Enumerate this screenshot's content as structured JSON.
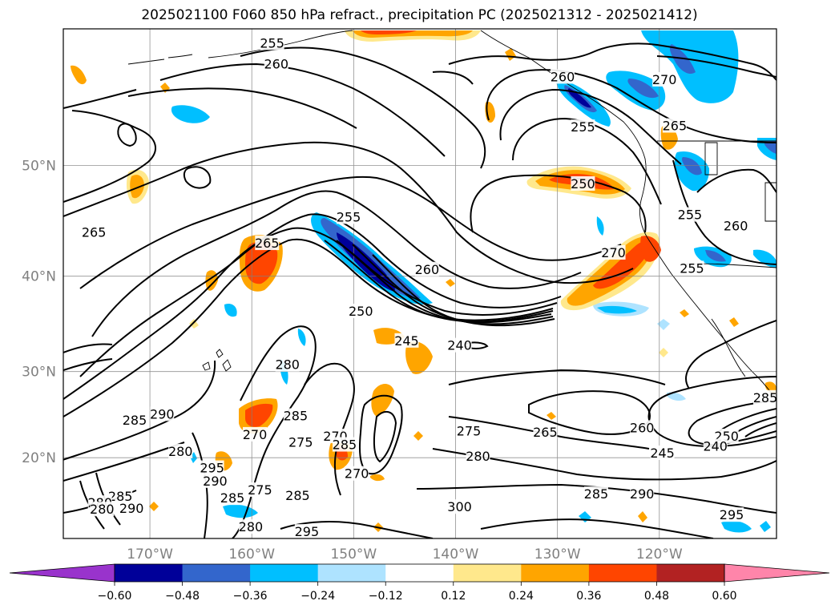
{
  "title": "2025021100 F060 850 hPa refract., precipitation PC (2025021312 - 2025021412)",
  "map": {
    "lon_range": [
      -178.5,
      -108.5
    ],
    "lat_range": [
      10,
      60
    ],
    "lat_ticks": [
      {
        "value": 20,
        "label": "20°N"
      },
      {
        "value": 30,
        "label": "30°N"
      },
      {
        "value": 40,
        "label": "40°N"
      },
      {
        "value": 50,
        "label": "50°N"
      }
    ],
    "lon_ticks": [
      {
        "value": -170,
        "label": "170°W"
      },
      {
        "value": -160,
        "label": "160°W"
      },
      {
        "value": -150,
        "label": "150°W"
      },
      {
        "value": -140,
        "label": "140°W"
      },
      {
        "value": -130,
        "label": "130°W"
      },
      {
        "value": -120,
        "label": "120°W"
      }
    ],
    "contour_labels": [
      {
        "text": "255",
        "lon": -158,
        "lat": 59.1
      },
      {
        "text": "260",
        "lon": -157.6,
        "lat": 57.7
      },
      {
        "text": "260",
        "lon": -129.5,
        "lat": 56.8
      },
      {
        "text": "270",
        "lon": -119.5,
        "lat": 56.6
      },
      {
        "text": "255",
        "lon": -127.5,
        "lat": 53.1
      },
      {
        "text": "265",
        "lon": -118.5,
        "lat": 53.2
      },
      {
        "text": "250",
        "lon": -127.5,
        "lat": 48.5
      },
      {
        "text": "265",
        "lon": -175.5,
        "lat": 44.2
      },
      {
        "text": "255",
        "lon": -150.5,
        "lat": 45.6
      },
      {
        "text": "255",
        "lon": -117,
        "lat": 45.8
      },
      {
        "text": "260",
        "lon": -112.5,
        "lat": 44.8
      },
      {
        "text": "265",
        "lon": -158.5,
        "lat": 43.2
      },
      {
        "text": "270",
        "lon": -124.5,
        "lat": 42.3
      },
      {
        "text": "260",
        "lon": -142.8,
        "lat": 40.7
      },
      {
        "text": "255",
        "lon": -116.8,
        "lat": 40.8
      },
      {
        "text": "250",
        "lon": -149.3,
        "lat": 36.5
      },
      {
        "text": "245",
        "lon": -144.8,
        "lat": 33.4
      },
      {
        "text": "240",
        "lon": -139.6,
        "lat": 32.9
      },
      {
        "text": "280",
        "lon": -156.5,
        "lat": 30.8
      },
      {
        "text": "285",
        "lon": -109.6,
        "lat": 27.1
      },
      {
        "text": "285",
        "lon": -171.5,
        "lat": 24.5
      },
      {
        "text": "290",
        "lon": -168.8,
        "lat": 25.2
      },
      {
        "text": "285",
        "lon": -155.7,
        "lat": 25
      },
      {
        "text": "270",
        "lon": -159.7,
        "lat": 22.8
      },
      {
        "text": "275",
        "lon": -155.2,
        "lat": 21.9
      },
      {
        "text": "270",
        "lon": -151.8,
        "lat": 22.6
      },
      {
        "text": "285",
        "lon": -150.9,
        "lat": 21.6
      },
      {
        "text": "275",
        "lon": -138.7,
        "lat": 23.2
      },
      {
        "text": "265",
        "lon": -131.2,
        "lat": 23.1
      },
      {
        "text": "260",
        "lon": -121.7,
        "lat": 23.6
      },
      {
        "text": "250",
        "lon": -113.4,
        "lat": 22.6
      },
      {
        "text": "240",
        "lon": -114.5,
        "lat": 21.4
      },
      {
        "text": "245",
        "lon": -119.7,
        "lat": 20.6
      },
      {
        "text": "280",
        "lon": -167,
        "lat": 20.8
      },
      {
        "text": "280",
        "lon": -137.8,
        "lat": 20.2
      },
      {
        "text": "295",
        "lon": -163.9,
        "lat": 18.8
      },
      {
        "text": "290",
        "lon": -163.6,
        "lat": 17.2
      },
      {
        "text": "275",
        "lon": -159.2,
        "lat": 16.1
      },
      {
        "text": "285",
        "lon": -155.5,
        "lat": 15.4
      },
      {
        "text": "285",
        "lon": -161.9,
        "lat": 15.1
      },
      {
        "text": "285",
        "lon": -172.9,
        "lat": 15.3
      },
      {
        "text": "280",
        "lon": -174.9,
        "lat": 14.5
      },
      {
        "text": "280",
        "lon": -174.7,
        "lat": 13.7
      },
      {
        "text": "290",
        "lon": -171.8,
        "lat": 13.8
      },
      {
        "text": "285",
        "lon": -126.2,
        "lat": 15.6
      },
      {
        "text": "290",
        "lon": -121.7,
        "lat": 15.6
      },
      {
        "text": "300",
        "lon": -139.6,
        "lat": 14
      },
      {
        "text": "295",
        "lon": -112.9,
        "lat": 13
      },
      {
        "text": "280",
        "lon": -160.1,
        "lat": 11.5
      },
      {
        "text": "295",
        "lon": -154.6,
        "lat": 10.9
      },
      {
        "text": "270",
        "lon": -149.7,
        "lat": 18.1
      }
    ]
  },
  "colorbar": {
    "levels": [
      -0.6,
      -0.48,
      -0.36,
      -0.24,
      -0.12,
      0.12,
      0.24,
      0.36,
      0.48,
      0.6
    ],
    "labels": [
      "−0.60",
      "−0.48",
      "−0.36",
      "−0.24",
      "−0.12",
      "0.12",
      "0.24",
      "0.36",
      "0.48",
      "0.60"
    ],
    "colors": [
      "#9933cc",
      "#000099",
      "#3366cc",
      "#00bfff",
      "#aee3ff",
      "#ffffff",
      "#ffe88c",
      "#ffa500",
      "#ff4500",
      "#b22222",
      "#ff85aa"
    ]
  }
}
